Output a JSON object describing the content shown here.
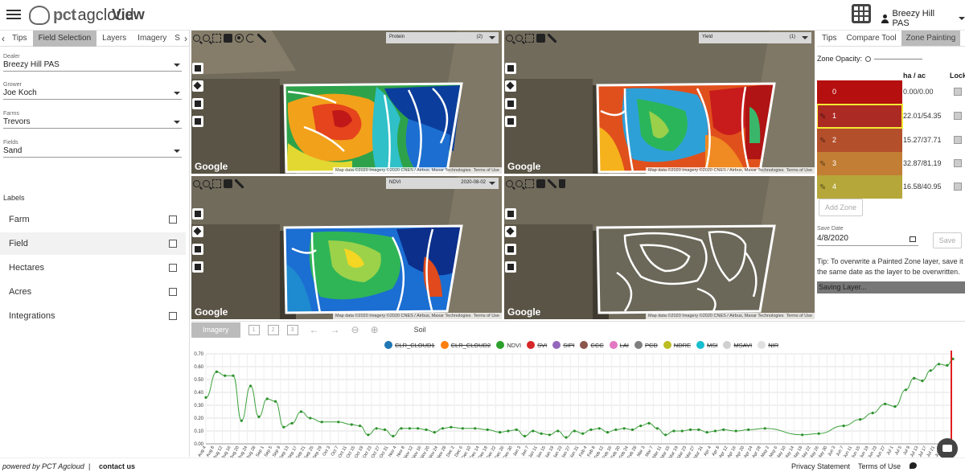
{
  "header": {
    "brand_prefix": "pct",
    "brand_suffix": "agcloud",
    "view_label": "View",
    "user_name": "Breezy Hill PAS"
  },
  "left": {
    "tabs": [
      "Tips",
      "Field Selection",
      "Layers",
      "Imagery",
      "S"
    ],
    "active_tab": "Field Selection",
    "fields": [
      {
        "label": "Dealer",
        "value": "Breezy Hill PAS"
      },
      {
        "label": "Grower",
        "value": "Joe Koch"
      },
      {
        "label": "Farms",
        "value": "Trevors"
      },
      {
        "label": "Fields",
        "value": "Sand"
      }
    ],
    "labels_header": "Labels",
    "label_items": [
      "Farm",
      "Field",
      "Hectares",
      "Acres",
      "Integrations"
    ]
  },
  "maps": [
    {
      "layer": "Protein",
      "count": "(2)",
      "date": "",
      "attribution": "Map data ©2020 Imagery ©2020 CNES / Airbus, Maxar Technologies",
      "terms": "Terms of Use",
      "google": "Google"
    },
    {
      "layer": "Yield",
      "count": "(1)",
      "date": "",
      "attribution": "Map data ©2020 Imagery ©2020 CNES / Airbus, Maxar Technologies",
      "terms": "Terms of Use",
      "google": "Google"
    },
    {
      "layer": "NDVI",
      "count": "",
      "date": "2020-08-02",
      "attribution": "Map data ©2020 Imagery ©2020 CNES / Airbus, Maxar Technologies",
      "terms": "Terms of Use",
      "google": "Google"
    },
    {
      "layer": "",
      "count": "",
      "date": "",
      "attribution": "Map data ©2020 Imagery ©2020 CNES / Airbus, Maxar Technologies",
      "terms": "Terms of Use",
      "google": "Google"
    }
  ],
  "right": {
    "tabs": [
      "Tips",
      "Compare Tool",
      "Zone Painting"
    ],
    "active_tab": "Zone Painting",
    "opacity_label": "Zone Opacity:",
    "col_ha": "ha / ac",
    "col_lock": "Lock",
    "zones": [
      {
        "id": "0",
        "value": "0.00/0.00",
        "color": "#b50f0f"
      },
      {
        "id": "1",
        "value": "22.01/54.35",
        "color": "#ac2a24"
      },
      {
        "id": "2",
        "value": "15.27/37.71",
        "color": "#b44f2c"
      },
      {
        "id": "3",
        "value": "32.87/81.19",
        "color": "#c27e34"
      },
      {
        "id": "4",
        "value": "16.58/40.95",
        "color": "#b6a73a"
      }
    ],
    "add_zone": "Add Zone",
    "save_date_label": "Save Date",
    "save_date": "4/8/2020",
    "save": "Save",
    "tip": "Tip: To overwrite a Painted Zone layer, save it on the same date as the layer to be overwritten.",
    "saving": "Saving Layer..."
  },
  "bottom": {
    "imagery_tab": "Imagery",
    "soil_tab": "Soil",
    "view_buttons": [
      "1",
      "2",
      "3"
    ]
  },
  "chart_data": {
    "type": "line",
    "legend": [
      {
        "name": "CLR_CLOUD1",
        "color": "#1f77b4",
        "enabled": false
      },
      {
        "name": "CLR_CLOUD2",
        "color": "#ff7f0e",
        "enabled": false
      },
      {
        "name": "NDVI",
        "color": "#2ca02c",
        "enabled": true
      },
      {
        "name": "SVI",
        "color": "#d62728",
        "enabled": false
      },
      {
        "name": "SIPI",
        "color": "#9467bd",
        "enabled": false
      },
      {
        "name": "CCC",
        "color": "#8c564b",
        "enabled": false
      },
      {
        "name": "LAI",
        "color": "#e377c2",
        "enabled": false
      },
      {
        "name": "PCD",
        "color": "#7f7f7f",
        "enabled": false
      },
      {
        "name": "NDRE",
        "color": "#bcbd22",
        "enabled": false
      },
      {
        "name": "MSI",
        "color": "#17becf",
        "enabled": false
      },
      {
        "name": "MSAVI",
        "color": "#d0d0d0",
        "enabled": false
      },
      {
        "name": "NIR",
        "color": "#e0e0e0",
        "enabled": false
      }
    ],
    "ylim": [
      0,
      0.7
    ],
    "yticks": [
      "0.70",
      "0.60",
      "0.50",
      "0.40",
      "0.30",
      "0.20",
      "0.10",
      "0.00"
    ],
    "categories": [
      "Aug 4",
      "Aug 8",
      "Aug 12",
      "Aug 16",
      "Aug 20",
      "Aug 24",
      "Aug 28",
      "Sep 1",
      "Sep 5",
      "Sep 9",
      "Sep 13",
      "Sep 17",
      "Sep 21",
      "Sep 25",
      "Sep 29",
      "Oct 3",
      "Oct 7",
      "Oct 11",
      "Oct 15",
      "Oct 19",
      "Oct 23",
      "Oct 27",
      "Oct 31",
      "Nov 4",
      "Nov 8",
      "Nov 12",
      "Nov 16",
      "Nov 20",
      "Nov 24",
      "Nov 28",
      "Dec 2",
      "Dec 6",
      "Dec 10",
      "Dec 14",
      "Dec 18",
      "Dec 22",
      "Dec 26",
      "Dec 30",
      "Jan 3",
      "Jan 7",
      "Jan 11",
      "Jan 15",
      "Jan 19",
      "Jan 23",
      "Jan 27",
      "Jan 31",
      "Feb 4",
      "Feb 8",
      "Feb 12",
      "Feb 16",
      "Feb 20",
      "Feb 24",
      "Feb 28",
      "Mar 3",
      "Mar 7",
      "Mar 11",
      "Mar 15",
      "Mar 19",
      "Mar 23",
      "Mar 27",
      "Mar 31",
      "Apr 4",
      "Apr 8",
      "Apr 12",
      "Apr 16",
      "Apr 20",
      "Apr 24",
      "Apr 28",
      "May 2",
      "May 6",
      "May 10",
      "May 14",
      "May 18",
      "May 22",
      "May 26",
      "May 30",
      "Jun 3",
      "Jun 7",
      "Jun 11",
      "Jun 15",
      "Jun 19",
      "Jun 23",
      "Jun 27",
      "Jul 1",
      "Jul 5",
      "Jul 9",
      "Jul 13",
      "Jul 17",
      "Jul 21",
      "Jul 25",
      "Jul 29"
    ],
    "series": [
      {
        "name": "NDVI",
        "points": [
          [
            0,
            0.36
          ],
          [
            1.3,
            0.56
          ],
          [
            2.3,
            0.53
          ],
          [
            3.3,
            0.53
          ],
          [
            4.3,
            0.18
          ],
          [
            5.4,
            0.45
          ],
          [
            6.4,
            0.21
          ],
          [
            7.4,
            0.35
          ],
          [
            8.4,
            0.33
          ],
          [
            9.4,
            0.13
          ],
          [
            10.4,
            0.16
          ],
          [
            11.5,
            0.25
          ],
          [
            12.6,
            0.2
          ],
          [
            14,
            0.17
          ],
          [
            16,
            0.17
          ],
          [
            17.6,
            0.15
          ],
          [
            18.6,
            0.14
          ],
          [
            19.6,
            0.07
          ],
          [
            20.6,
            0.12
          ],
          [
            21.6,
            0.11
          ],
          [
            22.6,
            0.06
          ],
          [
            23.6,
            0.12
          ],
          [
            24.6,
            0.12
          ],
          [
            25.6,
            0.12
          ],
          [
            26.6,
            0.11
          ],
          [
            27.6,
            0.09
          ],
          [
            28.6,
            0.12
          ],
          [
            29.6,
            0.13
          ],
          [
            31,
            0.12
          ],
          [
            32.5,
            0.12
          ],
          [
            34,
            0.11
          ],
          [
            35.5,
            0.09
          ],
          [
            36.5,
            0.1
          ],
          [
            37.5,
            0.11
          ],
          [
            38.5,
            0.06
          ],
          [
            39.5,
            0.1
          ],
          [
            40.5,
            0.08
          ],
          [
            41.5,
            0.07
          ],
          [
            42.5,
            0.1
          ],
          [
            43.5,
            0.05
          ],
          [
            44.5,
            0.1
          ],
          [
            45.5,
            0.08
          ],
          [
            46.5,
            0.11
          ],
          [
            47.5,
            0.12
          ],
          [
            48.5,
            0.09
          ],
          [
            49.5,
            0.11
          ],
          [
            50.5,
            0.12
          ],
          [
            51.5,
            0.11
          ],
          [
            52.5,
            0.14
          ],
          [
            53.5,
            0.16
          ],
          [
            54.5,
            0.12
          ],
          [
            55.5,
            0.07
          ],
          [
            56.5,
            0.1
          ],
          [
            57.5,
            0.1
          ],
          [
            58.5,
            0.11
          ],
          [
            59.5,
            0.11
          ],
          [
            60.5,
            0.09
          ],
          [
            61.5,
            0.1
          ],
          [
            62.5,
            0.11
          ],
          [
            64,
            0.1
          ],
          [
            65.5,
            0.11
          ],
          [
            67.5,
            0.12
          ],
          [
            72,
            0.07
          ],
          [
            74,
            0.08
          ],
          [
            77,
            0.14
          ],
          [
            79,
            0.19
          ],
          [
            80.5,
            0.24
          ],
          [
            82,
            0.31
          ],
          [
            83.2,
            0.29
          ],
          [
            84.5,
            0.42
          ],
          [
            85.5,
            0.51
          ],
          [
            86.5,
            0.49
          ],
          [
            87.5,
            0.57
          ],
          [
            88.5,
            0.62
          ],
          [
            89.5,
            0.61
          ],
          [
            90.2,
            0.66
          ]
        ]
      }
    ],
    "marker_category": "Jul 29"
  },
  "footer": {
    "powered": "powered by PCT Agcloud",
    "separator": "|",
    "contact": "contact us",
    "privacy": "Privacy Statement",
    "terms": "Terms of Use"
  }
}
